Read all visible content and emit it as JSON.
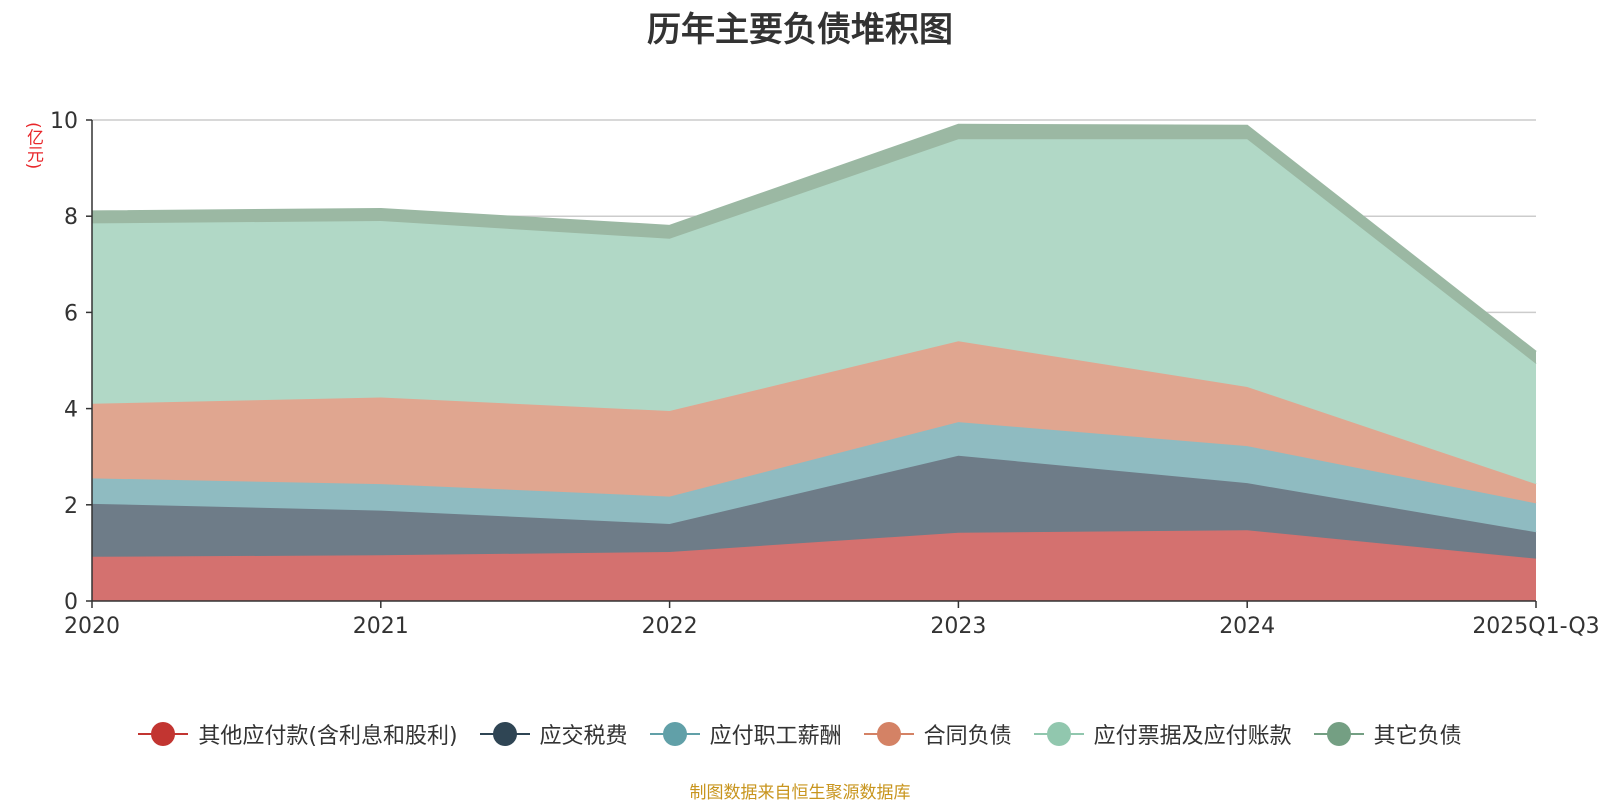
{
  "chart_data": {
    "type": "area",
    "stacked": true,
    "title": "历年主要负债堆积图",
    "ylabel": "(亿元)",
    "ylim": [
      0,
      10
    ],
    "yticks": [
      0,
      2,
      4,
      6,
      8,
      10
    ],
    "categories": [
      "2020",
      "2021",
      "2022",
      "2023",
      "2024",
      "2025Q1-Q3"
    ],
    "series": [
      {
        "name": "其他应付款(含利息和股利)",
        "color": "#c23531",
        "fill": "#d4716f",
        "values": [
          0.92,
          0.95,
          1.02,
          1.42,
          1.47,
          0.88
        ]
      },
      {
        "name": "应交税费",
        "color": "#2f4554",
        "fill": "#6e7c88",
        "values": [
          1.1,
          0.93,
          0.58,
          1.6,
          0.98,
          0.55
        ]
      },
      {
        "name": "应付职工薪酬",
        "color": "#61a0a8",
        "fill": "#8fbbc1",
        "values": [
          0.53,
          0.55,
          0.57,
          0.7,
          0.77,
          0.6
        ]
      },
      {
        "name": "合同负债",
        "color": "#d48265",
        "fill": "#e0a690",
        "values": [
          1.55,
          1.8,
          1.78,
          1.68,
          1.23,
          0.4
        ]
      },
      {
        "name": "应付票据及应付账款",
        "color": "#91c7ae",
        "fill": "#b1d8c6",
        "values": [
          3.75,
          3.67,
          3.58,
          4.2,
          5.15,
          2.5
        ]
      },
      {
        "name": "其它负债",
        "color": "#749f83",
        "fill": "#9bb8a3",
        "values": [
          0.25,
          0.25,
          0.27,
          0.3,
          0.28,
          0.25
        ]
      }
    ]
  },
  "source_note": "制图数据来自恒生聚源数据库"
}
